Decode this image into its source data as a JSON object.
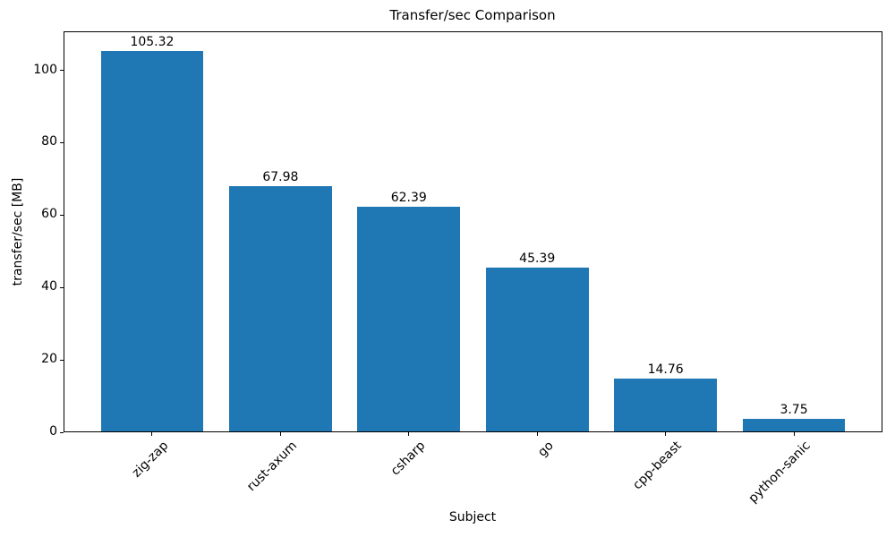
{
  "chart": {
    "title": "Transfer/sec Comparison",
    "xlabel": "Subject",
    "ylabel": "transfer/sec [MB]"
  },
  "chart_data": {
    "type": "bar",
    "title": "Transfer/sec Comparison",
    "xlabel": "Subject",
    "ylabel": "transfer/sec [MB]",
    "categories": [
      "zig-zap",
      "rust-axum",
      "csharp",
      "go",
      "cpp-beast",
      "python-sanic"
    ],
    "values": [
      105.32,
      67.98,
      62.39,
      45.39,
      14.76,
      3.75
    ],
    "value_labels": [
      "105.32",
      "67.98",
      "62.39",
      "45.39",
      "14.76",
      "3.75"
    ],
    "yticks": [
      0,
      20,
      40,
      60,
      80,
      100
    ],
    "ylim": [
      0,
      110.76
    ],
    "bar_color": "#1f77b4",
    "grid": false,
    "legend": null
  }
}
